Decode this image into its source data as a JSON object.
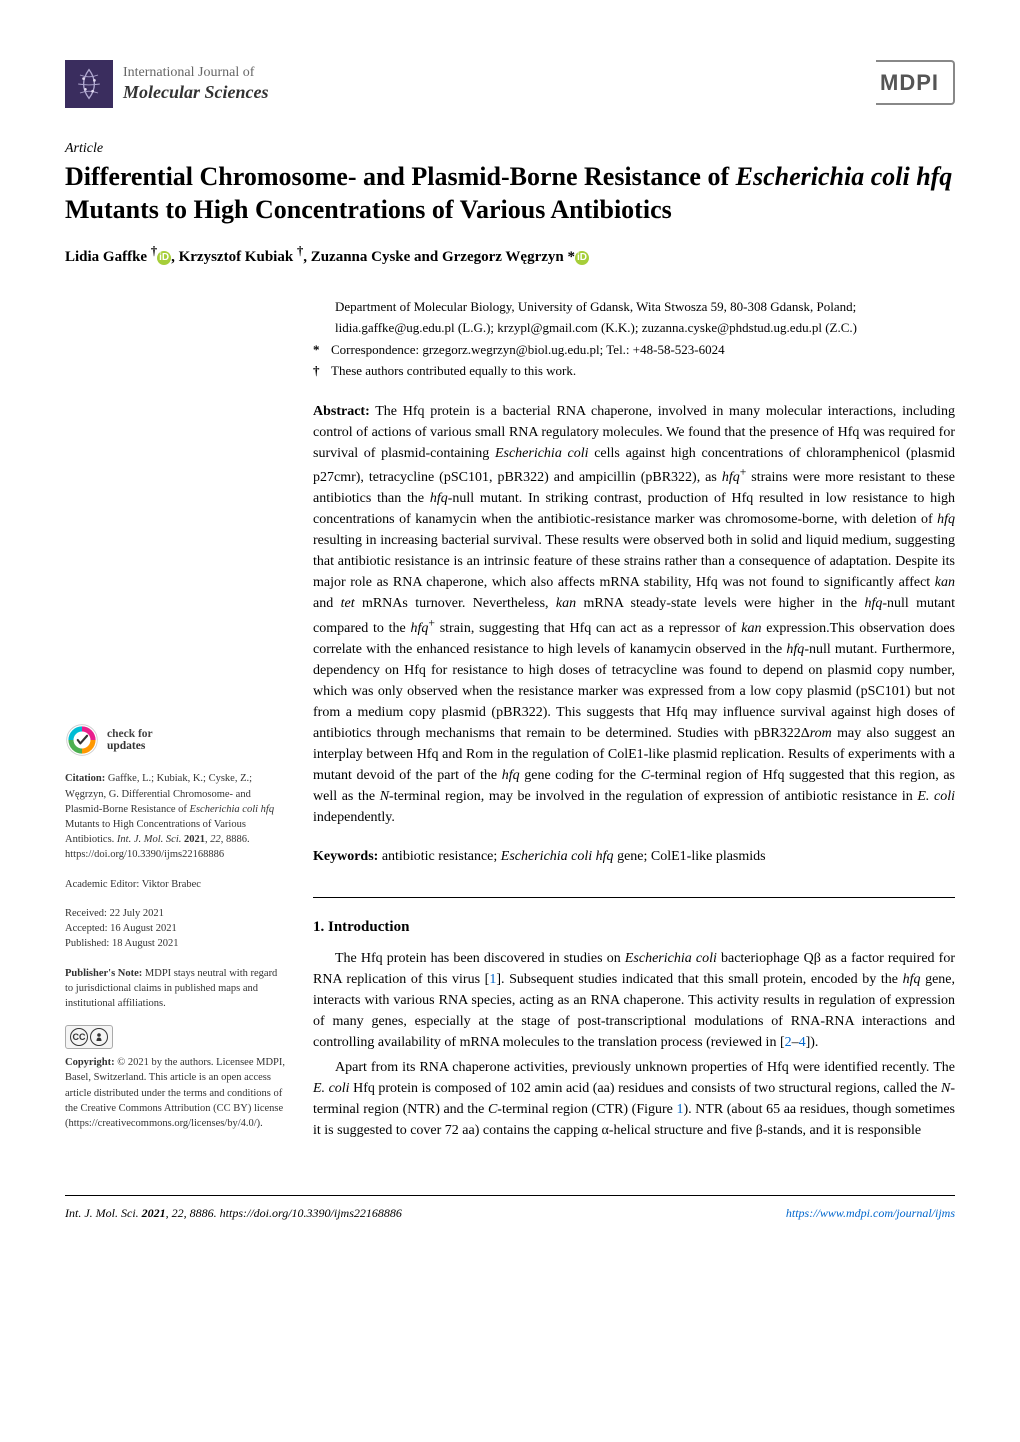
{
  "journal": {
    "line1": "International Journal of",
    "line2": "Molecular Sciences",
    "publisher_logo": "MDPI"
  },
  "article": {
    "type": "Article",
    "title_html": "Differential Chromosome- and Plasmid-Borne Resistance of <span class=\"species\">Escherichia coli hfq</span> Mutants to High Concentrations of Various Antibiotics",
    "authors_html": "Lidia Gaffke <sup>†</sup><span class=\"orcid\">iD</span>, Krzysztof Kubiak <sup>†</sup>, Zuzanna Cyske and Grzegorz Węgrzyn *<span class=\"orcid\">iD</span>"
  },
  "affiliation": {
    "dept": "Department of Molecular Biology, University of Gdansk, Wita Stwosza 59, 80-308 Gdansk, Poland;",
    "emails": "lidia.gaffke@ug.edu.pl (L.G.); krzypl@gmail.com (K.K.); zuzanna.cyske@phdstud.ug.edu.pl (Z.C.)",
    "correspondence": "Correspondence: grzegorz.wegrzyn@biol.ug.edu.pl; Tel.: +48-58-523-6024",
    "equal": "These authors contributed equally to this work."
  },
  "abstract": {
    "label": "Abstract:",
    "text_html": "The Hfq protein is a bacterial RNA chaperone, involved in many molecular interactions, including control of actions of various small RNA regulatory molecules. We found that the presence of Hfq was required for survival of plasmid-containing <i>Escherichia coli</i> cells against high concentrations of chloramphenicol (plasmid p27cmr), tetracycline (pSC101, pBR322) and ampicillin (pBR322), as <i>hfq</i><sup>+</sup> strains were more resistant to these antibiotics than the <i>hfq</i>-null mutant. In striking contrast, production of Hfq resulted in low resistance to high concentrations of kanamycin when the antibiotic-resistance marker was chromosome-borne, with deletion of <i>hfq</i> resulting in increasing bacterial survival. These results were observed both in solid and liquid medium, suggesting that antibiotic resistance is an intrinsic feature of these strains rather than a consequence of adaptation. Despite its major role as RNA chaperone, which also affects mRNA stability, Hfq was not found to significantly affect <i>kan</i> and <i>tet</i> mRNAs turnover. Nevertheless, <i>kan</i> mRNA steady-state levels were higher in the <i>hfq</i>-null mutant compared to the <i>hfq</i><sup>+</sup> strain, suggesting that Hfq can act as a repressor of <i>kan</i> expression.This observation does correlate with the enhanced resistance to high levels of kanamycin observed in the <i>hfq</i>-null mutant. Furthermore, dependency on Hfq for resistance to high doses of tetracycline was found to depend on plasmid copy number, which was only observed when the resistance marker was expressed from a low copy plasmid (pSC101) but not from a medium copy plasmid (pBR322). This suggests that Hfq may influence survival against high doses of antibiotics through mechanisms that remain to be determined. Studies with pBR322Δ<i>rom</i> may also suggest an interplay between Hfq and Rom in the regulation of ColE1-like plasmid replication. Results of experiments with a mutant devoid of the part of the <i>hfq</i> gene coding for the <i>C</i>-terminal region of Hfq suggested that this region, as well as the <i>N</i>-terminal region, may be involved in the regulation of expression of antibiotic resistance in <i>E. coli</i> independently."
  },
  "keywords": {
    "label": "Keywords:",
    "text_html": "antibiotic resistance; <i>Escherichia coli hfq</i> gene; ColE1-like plasmids"
  },
  "section": {
    "heading": "1. Introduction",
    "p1_html": "The Hfq protein has been discovered in studies on <i>Escherichia coli</i> bacteriophage Qβ as a factor required for RNA replication of this virus [<span class=\"ref-link\">1</span>]. Subsequent studies indicated that this small protein, encoded by the <i>hfq</i> gene, interacts with various RNA species, acting as an RNA chaperone. This activity results in regulation of expression of many genes, especially at the stage of post-transcriptional modulations of RNA-RNA interactions and controlling availability of mRNA molecules to the translation process (reviewed in [<span class=\"ref-link\">2</span>–<span class=\"ref-link\">4</span>]).",
    "p2_html": "Apart from its RNA chaperone activities, previously unknown properties of Hfq were identified recently. The <i>E. coli</i> Hfq protein is composed of 102 amin acid (aa) residues and consists of two structural regions, called the <i>N</i>-terminal region (NTR) and the <i>C</i>-terminal region (CTR) (Figure <span class=\"ref-link\">1</span>). NTR (about 65 aa residues, though sometimes it is suggested to cover 72 aa) contains the capping α-helical structure and five β-stands, and it is responsible"
  },
  "sidebar": {
    "updates": {
      "line1": "check for",
      "line2": "updates"
    },
    "citation": {
      "label": "Citation:",
      "text_html": "Gaffke, L.; Kubiak, K.; Cyske, Z.; Węgrzyn, G. Differential Chromosome- and Plasmid-Borne Resistance of <i>Escherichia coli hfq</i> Mutants to High Concentrations of Various Antibiotics. <i>Int. J. Mol. Sci.</i> <b>2021</b>, <i>22</i>, 8886. https://doi.org/10.3390/ijms22168886"
    },
    "editor": {
      "label": "Academic Editor:",
      "name": "Viktor Brabec"
    },
    "dates": {
      "received": "Received: 22 July 2021",
      "accepted": "Accepted: 16 August 2021",
      "published": "Published: 18 August 2021"
    },
    "publishers_note": {
      "label": "Publisher's Note:",
      "text": "MDPI stays neutral with regard to jurisdictional claims in published maps and institutional affiliations."
    },
    "copyright": {
      "label": "Copyright:",
      "text": "© 2021 by the authors. Licensee MDPI, Basel, Switzerland. This article is an open access article distributed under the terms and conditions of the Creative Commons Attribution (CC BY) license (https://creativecommons.org/licenses/by/4.0/)."
    }
  },
  "footer": {
    "left_html": "<i>Int. J. Mol. Sci.</i> <b>2021</b>, <i>22</i>, 8886. https://doi.org/10.3390/ijms22168886",
    "right": "https://www.mdpi.com/journal/ijms"
  },
  "colors": {
    "journal_icon_bg": "#3a2d5e",
    "orcid_green": "#a6ce39",
    "link_blue": "#0066cc",
    "checkmark_pink": "#e91e8c",
    "checkmark_green": "#4caf50",
    "checkmark_orange": "#ff9800",
    "checkmark_cyan": "#00bcd4"
  }
}
